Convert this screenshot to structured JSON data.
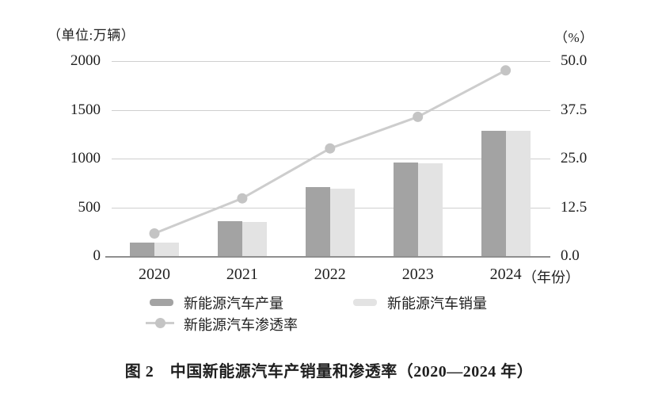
{
  "caption": "图 2　中国新能源汽车产销量和渗透率（2020—2024 年）",
  "chart_data": {
    "type": "bar+line",
    "title": "中国新能源汽车产销量和渗透率（2020—2024 年）",
    "categories": [
      "2020",
      "2021",
      "2022",
      "2023",
      "2024"
    ],
    "x_axis_suffix": "（年份）",
    "series": [
      {
        "name": "新能源汽车产量",
        "type": "bar",
        "axis": "left",
        "color": "#a3a3a3",
        "values": [
          136.6,
          354.5,
          705.8,
          958.7,
          1288.8
        ]
      },
      {
        "name": "新能源汽车销量",
        "type": "bar",
        "axis": "left",
        "color": "#e3e3e3",
        "values": [
          136.7,
          352.1,
          688.7,
          949.5,
          1286.6
        ]
      },
      {
        "name": "新能源汽车渗透率",
        "type": "line",
        "axis": "right",
        "color": "#cdcdcd",
        "marker_color": "#c4c4c4",
        "values": [
          5.8,
          14.8,
          27.6,
          35.7,
          47.6
        ]
      }
    ],
    "left_axis": {
      "label": "（单位:万辆）",
      "min": 0,
      "max": 2000,
      "ticks": [
        "2000",
        "1500",
        "1000",
        "500",
        "0"
      ]
    },
    "right_axis": {
      "label": "（%）",
      "min": 0,
      "max": 50,
      "ticks": [
        "50.0",
        "37.5",
        "25.0",
        "12.5",
        "0.0"
      ]
    },
    "grid": true,
    "legend_position": "bottom"
  }
}
